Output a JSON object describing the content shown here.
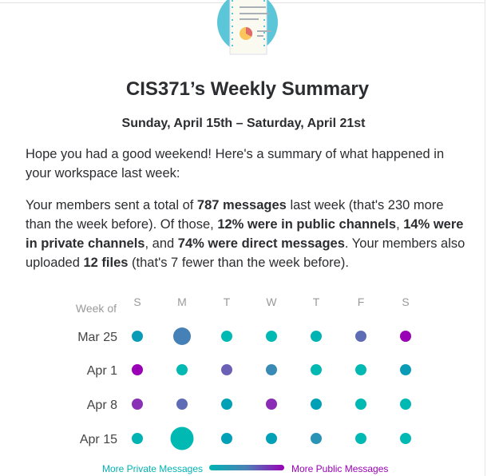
{
  "title": "CIS371’s Weekly Summary",
  "date_range": "Sunday, April 15th – Saturday, April 21st",
  "intro": "Hope you had a good weekend! Here's a summary of what happened in your workspace last week:",
  "summary": {
    "t1": "Your members sent a total of ",
    "b1": "787 messages",
    "t2": " last week (that's 230 more than the week before). Of those, ",
    "b2": "12% were in public channels",
    "t3": ", ",
    "b3": "14% were in private channels",
    "t4": ", and ",
    "b4": "74% were direct messages",
    "t5": ". Your members also uploaded ",
    "b5": "12 files",
    "t6": " (that's 7 fewer than the week before)."
  },
  "chart_data": {
    "type": "scatter",
    "row_header": "Week of",
    "days": [
      "S",
      "M",
      "T",
      "W",
      "T",
      "F",
      "S"
    ],
    "weeks": [
      "Mar 25",
      "Apr 1",
      "Apr 8",
      "Apr 15"
    ],
    "relative_size": [
      [
        1,
        2,
        1,
        1,
        1,
        1,
        1
      ],
      [
        1,
        1,
        1,
        1,
        1,
        1,
        1
      ],
      [
        1,
        1,
        1,
        1,
        1,
        1,
        1
      ],
      [
        1,
        3,
        1,
        1,
        1,
        1,
        1
      ]
    ],
    "colors": [
      [
        "#0a9cb6",
        "#4580b6",
        "#00b9b3",
        "#00b9b3",
        "#00b3b3",
        "#5e6cb6",
        "#9a00b6"
      ],
      [
        "#9a00b6",
        "#00b9b3",
        "#6a60b6",
        "#3a8ab6",
        "#00b9b3",
        "#00b9b3",
        "#0a9cb6"
      ],
      [
        "#8a30b6",
        "#5e6cb6",
        "#00a0b6",
        "#8a2cb6",
        "#00a0b6",
        "#00b9b3",
        "#00b9b3"
      ],
      [
        "#00b3b3",
        "#00b9b3",
        "#00a0b6",
        "#00a0b6",
        "#2a94b6",
        "#00b9b3",
        "#00b9b3"
      ]
    ],
    "legend": {
      "left": "More Private Messages",
      "right": "More Public Messages",
      "left_color": "#00b3b3",
      "right_color": "#9a00b6"
    }
  }
}
